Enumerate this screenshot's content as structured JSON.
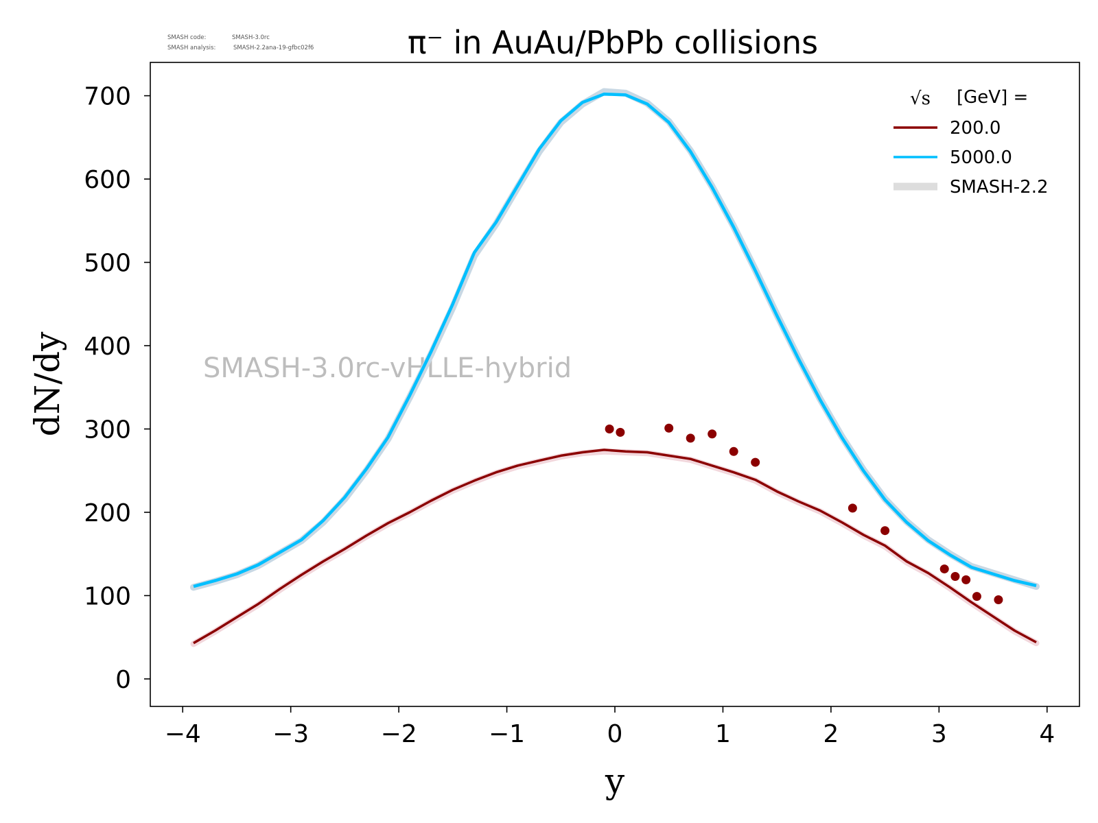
{
  "meta": {
    "code_label": "SMASH code:",
    "code_value": "SMASH-3.0rc",
    "analysis_label": "SMASH analysis:",
    "analysis_value": "SMASH-2.2ana-19-gfbc02f6"
  },
  "watermark": "SMASH-3.0rc-vHLLE-hybrid",
  "chart_data": {
    "type": "line",
    "title": "π⁻ in AuAu/PbPb collisions",
    "xlabel": "y",
    "ylabel": "dN/dy",
    "xlim": [
      -4.3,
      4.3
    ],
    "ylim": [
      -33,
      740
    ],
    "xticks": [
      -4,
      -3,
      -2,
      -1,
      0,
      1,
      2,
      3,
      4
    ],
    "xtick_labels": [
      "−4",
      "−3",
      "−2",
      "−1",
      "0",
      "1",
      "2",
      "3",
      "4"
    ],
    "yticks": [
      0,
      100,
      200,
      300,
      400,
      500,
      600,
      700
    ],
    "ytick_labels": [
      "0",
      "100",
      "200",
      "300",
      "400",
      "500",
      "600",
      "700"
    ],
    "grid": false,
    "legend": {
      "placement": "top-right",
      "title_sqrt": "√s",
      "title_rest": "[GeV] =",
      "entries": [
        "200.0",
        "5000.0",
        "SMASH-2.2"
      ]
    },
    "colors": {
      "s200": "#8b0000",
      "s5000": "#00bfff",
      "reference": "#dddddd"
    },
    "x": [
      -3.9,
      -3.7,
      -3.5,
      -3.3,
      -3.1,
      -2.9,
      -2.7,
      -2.5,
      -2.3,
      -2.1,
      -1.9,
      -1.7,
      -1.5,
      -1.3,
      -1.1,
      -0.9,
      -0.7,
      -0.5,
      -0.3,
      -0.1,
      0.1,
      0.3,
      0.5,
      0.7,
      0.9,
      1.1,
      1.3,
      1.5,
      1.7,
      1.9,
      2.1,
      2.3,
      2.5,
      2.7,
      2.9,
      3.1,
      3.3,
      3.5,
      3.7,
      3.9
    ],
    "series": [
      {
        "name": "200.0",
        "values": [
          43,
          58,
          74,
          90,
          108,
          125,
          141,
          156,
          172,
          187,
          200,
          214,
          227,
          238,
          248,
          256,
          262,
          268,
          272,
          275,
          273,
          272,
          268,
          264,
          256,
          248,
          239,
          225,
          213,
          202,
          188,
          173,
          160,
          141,
          127,
          110,
          92,
          75,
          58,
          44
        ]
      },
      {
        "name": "5000.0",
        "values": [
          111,
          118,
          126,
          137,
          152,
          167,
          190,
          218,
          252,
          290,
          340,
          393,
          450,
          512,
          548,
          592,
          636,
          670,
          692,
          702,
          701,
          690,
          668,
          633,
          590,
          542,
          490,
          436,
          384,
          335,
          290,
          250,
          215,
          188,
          166,
          149,
          134,
          126,
          118,
          112
        ]
      }
    ],
    "reference_series": [
      {
        "name": "SMASH-2.2",
        "values_200": [
          42,
          57,
          73,
          89,
          107,
          124,
          140,
          155,
          171,
          186,
          199,
          213,
          226,
          237,
          247,
          255,
          261,
          267,
          271,
          273,
          272,
          271,
          267,
          263,
          255,
          247,
          238,
          224,
          212,
          201,
          187,
          172,
          159,
          140,
          126,
          109,
          91,
          74,
          57,
          43
        ],
        "values_5000": [
          110,
          117,
          125,
          136,
          151,
          166,
          188,
          216,
          250,
          288,
          338,
          390,
          446,
          508,
          546,
          590,
          633,
          668,
          690,
          705,
          703,
          691,
          669,
          634,
          591,
          543,
          491,
          437,
          385,
          336,
          291,
          251,
          216,
          189,
          167,
          150,
          135,
          127,
          119,
          111
        ]
      }
    ],
    "measurements_200": {
      "x": [
        -0.05,
        0.05,
        0.5,
        0.7,
        0.9,
        1.1,
        1.3,
        2.2,
        2.5,
        3.05,
        3.15,
        3.25,
        3.35,
        3.55
      ],
      "y": [
        300,
        296,
        301,
        289,
        294,
        273,
        260,
        205,
        178,
        132,
        123,
        119,
        99,
        95
      ]
    }
  }
}
